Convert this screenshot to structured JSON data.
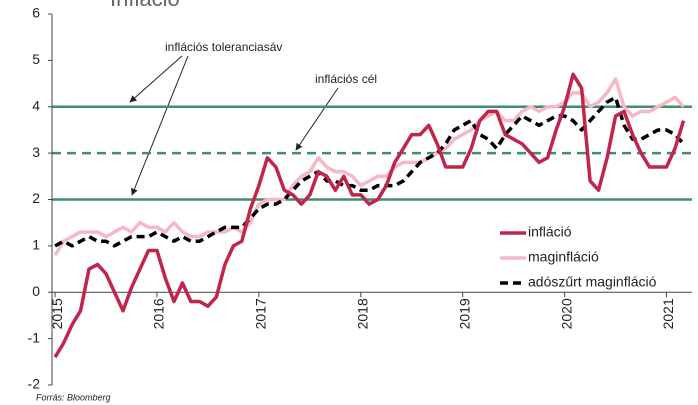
{
  "chart_data": {
    "type": "line",
    "title": "Infláció",
    "source": "Forrás: Bloomberg",
    "x": [
      2015,
      2015.083,
      2015.167,
      2015.25,
      2015.333,
      2015.417,
      2015.5,
      2015.583,
      2015.667,
      2015.75,
      2015.833,
      2015.917,
      2016,
      2016.083,
      2016.167,
      2016.25,
      2016.333,
      2016.417,
      2016.5,
      2016.583,
      2016.667,
      2016.75,
      2016.833,
      2016.917,
      2017,
      2017.083,
      2017.167,
      2017.25,
      2017.333,
      2017.417,
      2017.5,
      2017.583,
      2017.667,
      2017.75,
      2017.833,
      2017.917,
      2018,
      2018.083,
      2018.167,
      2018.25,
      2018.333,
      2018.417,
      2018.5,
      2018.583,
      2018.667,
      2018.75,
      2018.833,
      2018.917,
      2019,
      2019.083,
      2019.167,
      2019.25,
      2019.333,
      2019.417,
      2019.5,
      2019.583,
      2019.667,
      2019.75,
      2019.833,
      2019.917,
      2020,
      2020.083,
      2020.167,
      2020.25,
      2020.333,
      2020.417,
      2020.5,
      2020.583,
      2020.667,
      2020.75,
      2020.833,
      2020.917,
      2021,
      2021.083,
      2021.167
    ],
    "xlim": [
      2014.97,
      2021.25
    ],
    "xticks": [
      2015,
      2016,
      2017,
      2018,
      2019,
      2020,
      2021
    ],
    "ylim": [
      -2,
      6
    ],
    "yticks": [
      -2,
      -1,
      0,
      1,
      2,
      3,
      4,
      5,
      6
    ],
    "series": [
      {
        "name": "infláció",
        "color": "#c0264b",
        "style": "solid",
        "width": 3.5,
        "values": [
          -1.4,
          -1.1,
          -0.7,
          -0.4,
          0.5,
          0.6,
          0.4,
          0.0,
          -0.4,
          0.1,
          0.5,
          0.9,
          0.9,
          0.3,
          -0.2,
          0.2,
          -0.2,
          -0.2,
          -0.3,
          -0.1,
          0.6,
          1.0,
          1.1,
          1.8,
          2.3,
          2.9,
          2.7,
          2.2,
          2.1,
          1.9,
          2.1,
          2.6,
          2.5,
          2.2,
          2.5,
          2.1,
          2.1,
          1.9,
          2.0,
          2.3,
          2.8,
          3.1,
          3.4,
          3.4,
          3.6,
          3.2,
          2.7,
          2.7,
          2.7,
          3.1,
          3.7,
          3.9,
          3.9,
          3.4,
          3.3,
          3.2,
          3.0,
          2.8,
          2.9,
          3.5,
          4.0,
          4.7,
          4.4,
          2.4,
          2.2,
          2.9,
          3.8,
          3.9,
          3.4,
          3.0,
          2.7,
          2.7,
          2.7,
          3.1,
          3.7
        ]
      },
      {
        "name": "maginfláció",
        "color": "#f5b8c4",
        "style": "solid",
        "width": 3.5,
        "values": [
          0.8,
          1.1,
          1.2,
          1.3,
          1.3,
          1.3,
          1.2,
          1.3,
          1.4,
          1.3,
          1.5,
          1.4,
          1.4,
          1.3,
          1.5,
          1.3,
          1.2,
          1.2,
          1.3,
          1.3,
          1.3,
          1.4,
          1.3,
          1.5,
          1.9,
          2.0,
          2.0,
          2.0,
          2.3,
          2.5,
          2.6,
          2.9,
          2.7,
          2.6,
          2.6,
          2.5,
          2.3,
          2.4,
          2.5,
          2.5,
          2.7,
          2.8,
          2.8,
          2.8,
          2.9,
          3.0,
          3.1,
          3.3,
          3.4,
          3.5,
          3.7,
          3.8,
          3.9,
          3.7,
          3.7,
          3.9,
          4.0,
          3.9,
          4.0,
          4.0,
          4.1,
          4.3,
          4.3,
          4.0,
          4.1,
          4.3,
          4.6,
          4.0,
          3.8,
          3.9,
          3.9,
          4.0,
          4.1,
          4.2,
          4.0
        ]
      },
      {
        "name": "adószűrt maginfláció",
        "color": "#000000",
        "style": "dashed",
        "width": 3.5,
        "values": [
          1.0,
          1.1,
          1.0,
          1.1,
          1.2,
          1.1,
          1.1,
          1.0,
          1.1,
          1.2,
          1.2,
          1.2,
          1.3,
          1.2,
          1.1,
          1.2,
          1.1,
          1.1,
          1.2,
          1.3,
          1.4,
          1.4,
          1.4,
          1.6,
          1.8,
          1.9,
          1.9,
          2.0,
          2.2,
          2.4,
          2.5,
          2.6,
          2.4,
          2.4,
          2.3,
          2.3,
          2.2,
          2.2,
          2.3,
          2.3,
          2.3,
          2.4,
          2.6,
          2.8,
          2.9,
          3.0,
          3.2,
          3.5,
          3.6,
          3.7,
          3.4,
          3.3,
          3.1,
          3.4,
          3.6,
          3.8,
          3.7,
          3.6,
          3.7,
          3.8,
          3.8,
          3.7,
          3.5,
          3.7,
          3.9,
          4.1,
          4.2,
          3.6,
          3.3,
          3.3,
          3.4,
          3.5,
          3.5,
          3.4,
          3.2
        ]
      }
    ],
    "reference_lines": [
      {
        "value": 4,
        "style": "solid",
        "color": "#3d8f6e"
      },
      {
        "value": 3,
        "style": "dashed",
        "color": "#3d8f6e"
      },
      {
        "value": 2,
        "style": "solid",
        "color": "#3d8f6e"
      }
    ],
    "annotations": [
      {
        "text": "inflációs toleranciasáv"
      },
      {
        "text": "inflációs cél"
      }
    ],
    "legend": "right"
  }
}
